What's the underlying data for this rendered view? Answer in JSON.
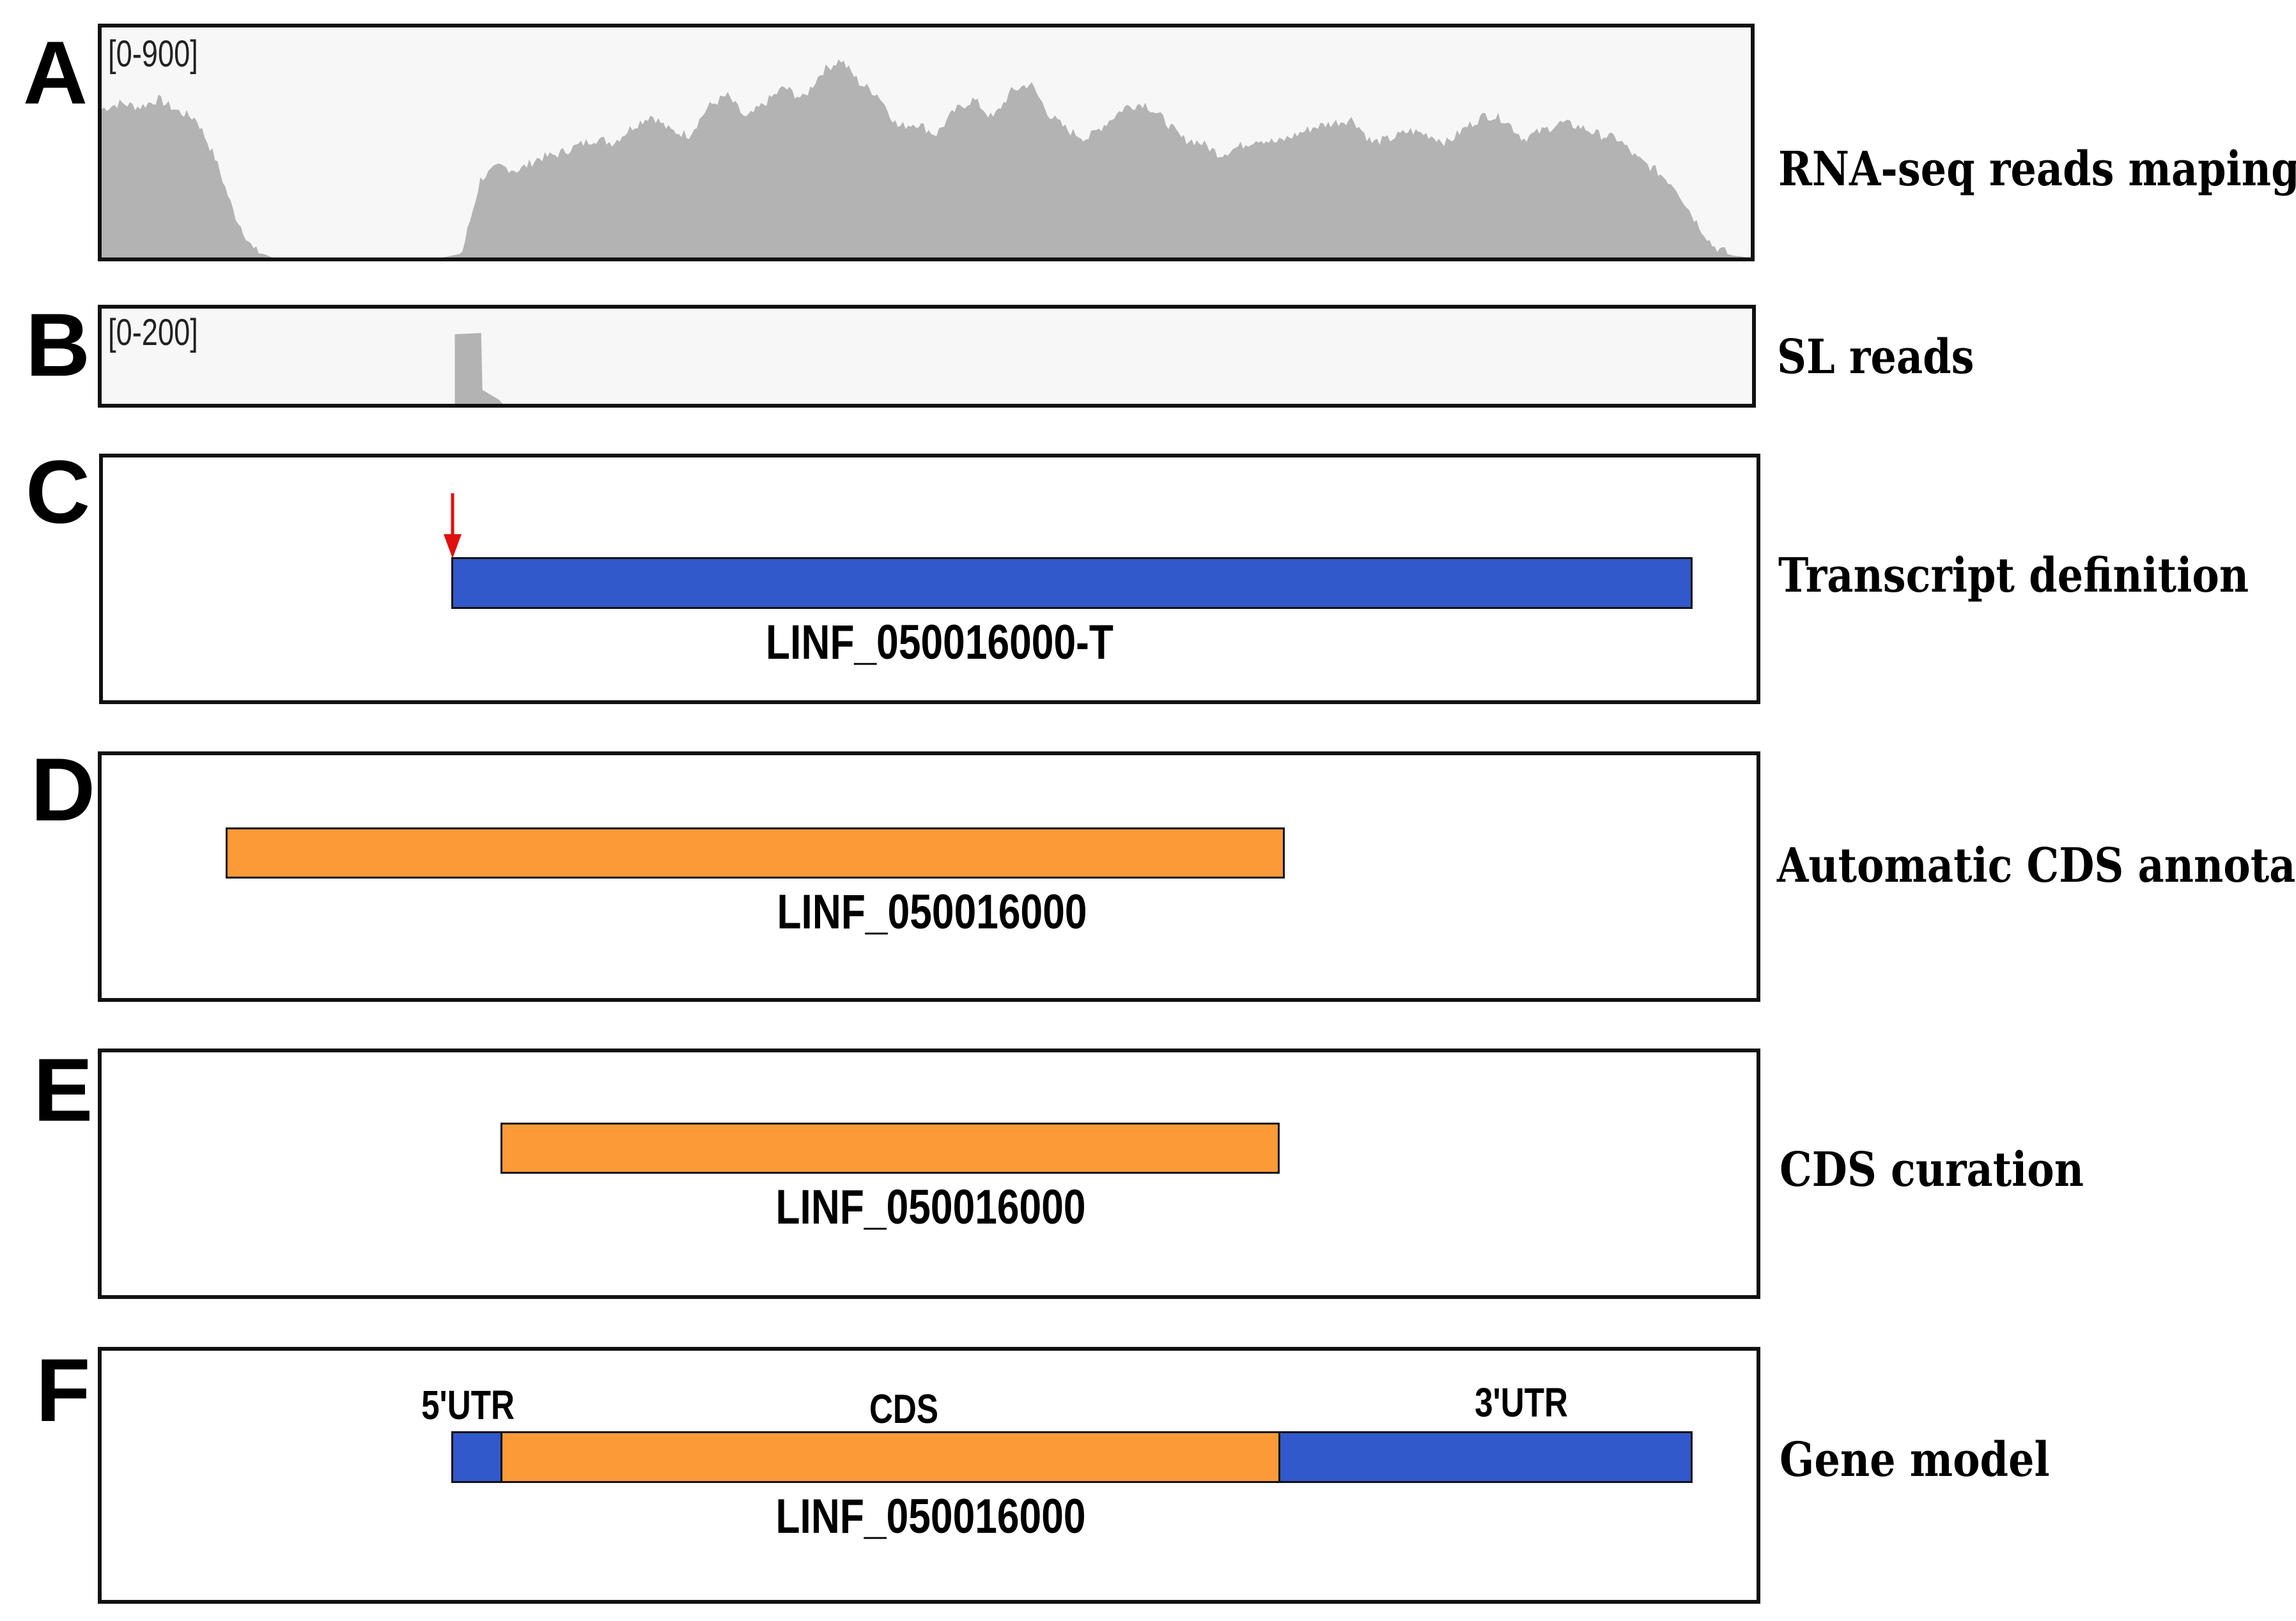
{
  "colors": {
    "coverage": "#b3b3b3",
    "transcript": "#3159cc",
    "cds": "#fb9a36",
    "arrow": "#e01010",
    "track_bg": "#f7f7f7"
  },
  "panels": {
    "A": {
      "letter": "A",
      "range": "[0-900]",
      "label": "RNA-seq reads maping"
    },
    "B": {
      "letter": "B",
      "range": "[0-200]",
      "label": "SL reads"
    },
    "C": {
      "letter": "C",
      "label": "Transcript definition",
      "feature": "LINF_050016000-T"
    },
    "D": {
      "letter": "D",
      "label": "Automatic CDS annotation",
      "feature": "LINF_050016000"
    },
    "E": {
      "letter": "E",
      "label": "CDS curation",
      "feature": "LINF_050016000"
    },
    "F": {
      "letter": "F",
      "label": "Gene model",
      "feature": "LINF_050016000",
      "segments": {
        "utr5": "5'UTR",
        "cds": "CDS",
        "utr3": "3'UTR"
      }
    }
  },
  "coverage": {
    "rna_seq_profile": [
      0.75,
      0.78,
      0.76,
      0.8,
      0.74,
      0.7,
      0.5,
      0.22,
      0.04,
      0,
      0,
      0,
      0,
      0,
      0,
      0,
      0,
      0,
      0,
      0.02,
      0.4,
      0.46,
      0.44,
      0.5,
      0.52,
      0.56,
      0.6,
      0.58,
      0.66,
      0.72,
      0.64,
      0.62,
      0.76,
      0.82,
      0.7,
      0.78,
      0.86,
      0.8,
      0.94,
      1.0,
      0.88,
      0.82,
      0.66,
      0.68,
      0.62,
      0.74,
      0.8,
      0.7,
      0.84,
      0.88,
      0.72,
      0.64,
      0.6,
      0.68,
      0.76,
      0.78,
      0.7,
      0.6,
      0.58,
      0.52,
      0.56,
      0.6,
      0.58,
      0.62,
      0.66,
      0.68,
      0.7,
      0.58,
      0.6,
      0.64,
      0.62,
      0.58,
      0.66,
      0.72,
      0.7,
      0.6,
      0.64,
      0.68,
      0.66,
      0.62,
      0.6,
      0.5,
      0.44,
      0.36,
      0.2,
      0.06,
      0.01,
      0
    ],
    "sl_peak": {
      "start_fraction": 0.214,
      "end_fraction": 0.243,
      "height_fraction": 0.9
    }
  }
}
